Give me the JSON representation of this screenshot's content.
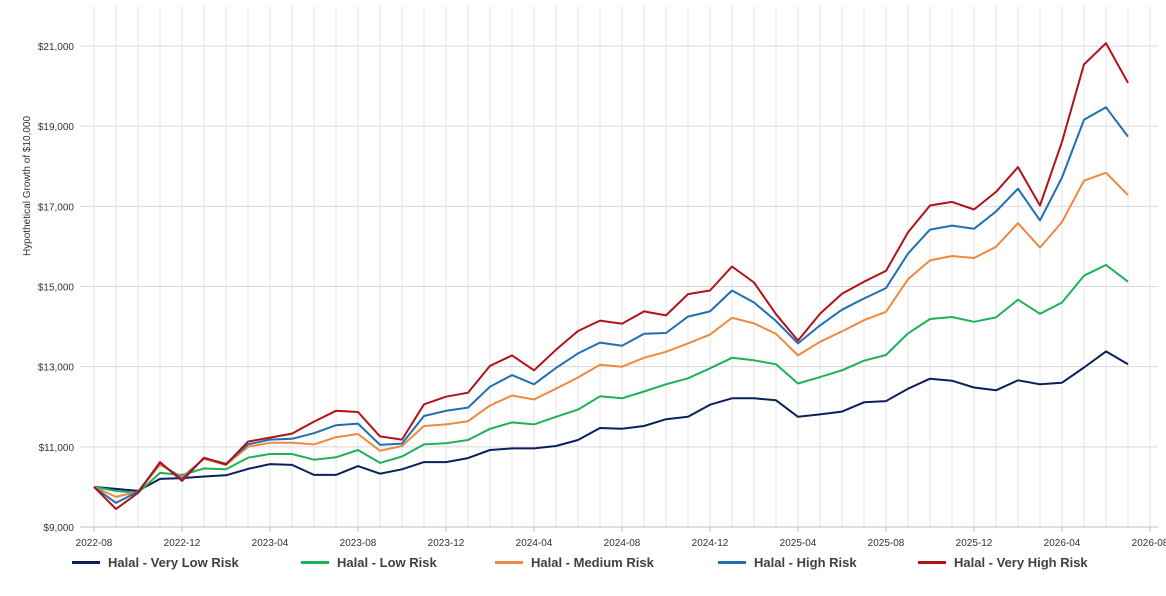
{
  "chart_data": {
    "type": "line",
    "title": "",
    "xlabel": "",
    "ylabel": "Hypothetical Growth of $10,000",
    "ylim": [
      9000,
      21000
    ],
    "yticks": [
      "$9,000",
      "$11,000",
      "$13,000",
      "$15,000",
      "$17,000",
      "$19,000",
      "$21,000"
    ],
    "xticks": [
      "2022-08",
      "2022-12",
      "2023-04",
      "2023-08",
      "2023-12",
      "2024-04",
      "2024-08",
      "2024-12",
      "2025-04",
      "2025-08",
      "2025-12",
      "2026-04",
      "2026-08"
    ],
    "grid": true,
    "legend_position": "bottom",
    "x": [
      "2022-08",
      "2022-09",
      "2022-10",
      "2022-11",
      "2022-12",
      "2023-01",
      "2023-02",
      "2023-03",
      "2023-04",
      "2023-05",
      "2023-06",
      "2023-07",
      "2023-08",
      "2023-09",
      "2023-10",
      "2023-11",
      "2023-12",
      "2024-01",
      "2024-02",
      "2024-03",
      "2024-04",
      "2024-05",
      "2024-06",
      "2024-07",
      "2024-08",
      "2024-09",
      "2024-10",
      "2024-11",
      "2024-12",
      "2025-01",
      "2025-02",
      "2025-03",
      "2025-04",
      "2025-05",
      "2025-06",
      "2025-07",
      "2025-08",
      "2025-09",
      "2025-10",
      "2025-11",
      "2025-12",
      "2026-01",
      "2026-02",
      "2026-03",
      "2026-04",
      "2026-05",
      "2026-06",
      "2026-07"
    ],
    "series": [
      {
        "name": "Halal - Very Low Risk",
        "color": "#0c1f5c",
        "values": [
          10000,
          9950,
          9900,
          10200,
          10220,
          10260,
          10290,
          10450,
          10570,
          10550,
          10300,
          10300,
          10520,
          10330,
          10440,
          10620,
          10620,
          10720,
          10920,
          10960,
          10960,
          11020,
          11170,
          11470,
          11450,
          11520,
          11690,
          11750,
          12050,
          12210,
          12210,
          12160,
          11750,
          11810,
          11880,
          12110,
          12140,
          12450,
          12700,
          12650,
          12480,
          12410,
          12660,
          12560,
          12600,
          12980,
          13380,
          13060
        ]
      },
      {
        "name": "Halal - Low Risk",
        "color": "#1db15a",
        "values": [
          10000,
          9900,
          9850,
          10350,
          10300,
          10460,
          10440,
          10730,
          10820,
          10820,
          10680,
          10740,
          10920,
          10600,
          10760,
          11060,
          11090,
          11170,
          11450,
          11610,
          11560,
          11750,
          11930,
          12260,
          12210,
          12380,
          12560,
          12710,
          12960,
          13220,
          13160,
          13060,
          12580,
          12740,
          12910,
          13150,
          13290,
          13830,
          14190,
          14240,
          14120,
          14230,
          14670,
          14320,
          14600,
          15270,
          15540,
          15120
        ]
      },
      {
        "name": "Halal - Medium Risk",
        "color": "#f0883e",
        "values": [
          10000,
          9750,
          9880,
          10550,
          10250,
          10700,
          10550,
          11000,
          11100,
          11100,
          11060,
          11240,
          11320,
          10900,
          11020,
          11520,
          11560,
          11640,
          12030,
          12280,
          12180,
          12450,
          12730,
          13050,
          13000,
          13220,
          13370,
          13580,
          13800,
          14220,
          14080,
          13820,
          13280,
          13620,
          13880,
          14160,
          14370,
          15180,
          15650,
          15760,
          15710,
          15990,
          16580,
          15970,
          16610,
          17640,
          17840,
          17280
        ]
      },
      {
        "name": "Halal - High Risk",
        "color": "#1f6fb5",
        "values": [
          10000,
          9600,
          9880,
          10600,
          10200,
          10720,
          10580,
          11060,
          11180,
          11200,
          11340,
          11540,
          11580,
          11050,
          11080,
          11770,
          11900,
          11980,
          12500,
          12790,
          12560,
          12970,
          13330,
          13600,
          13520,
          13820,
          13840,
          14250,
          14380,
          14900,
          14600,
          14140,
          13580,
          14030,
          14420,
          14700,
          14960,
          15820,
          16420,
          16520,
          16440,
          16870,
          17440,
          16650,
          17720,
          19160,
          19470,
          18740
        ]
      },
      {
        "name": "Halal - Very High Risk",
        "color": "#b01218",
        "values": [
          10000,
          9450,
          9850,
          10620,
          10150,
          10730,
          10560,
          11130,
          11230,
          11330,
          11630,
          11900,
          11870,
          11260,
          11180,
          12060,
          12250,
          12350,
          13020,
          13280,
          12910,
          13420,
          13890,
          14150,
          14070,
          14380,
          14280,
          14810,
          14900,
          15500,
          15100,
          14310,
          13650,
          14320,
          14820,
          15120,
          15390,
          16350,
          17020,
          17110,
          16920,
          17360,
          17980,
          17020,
          18610,
          20540,
          21070,
          20080
        ]
      }
    ]
  }
}
